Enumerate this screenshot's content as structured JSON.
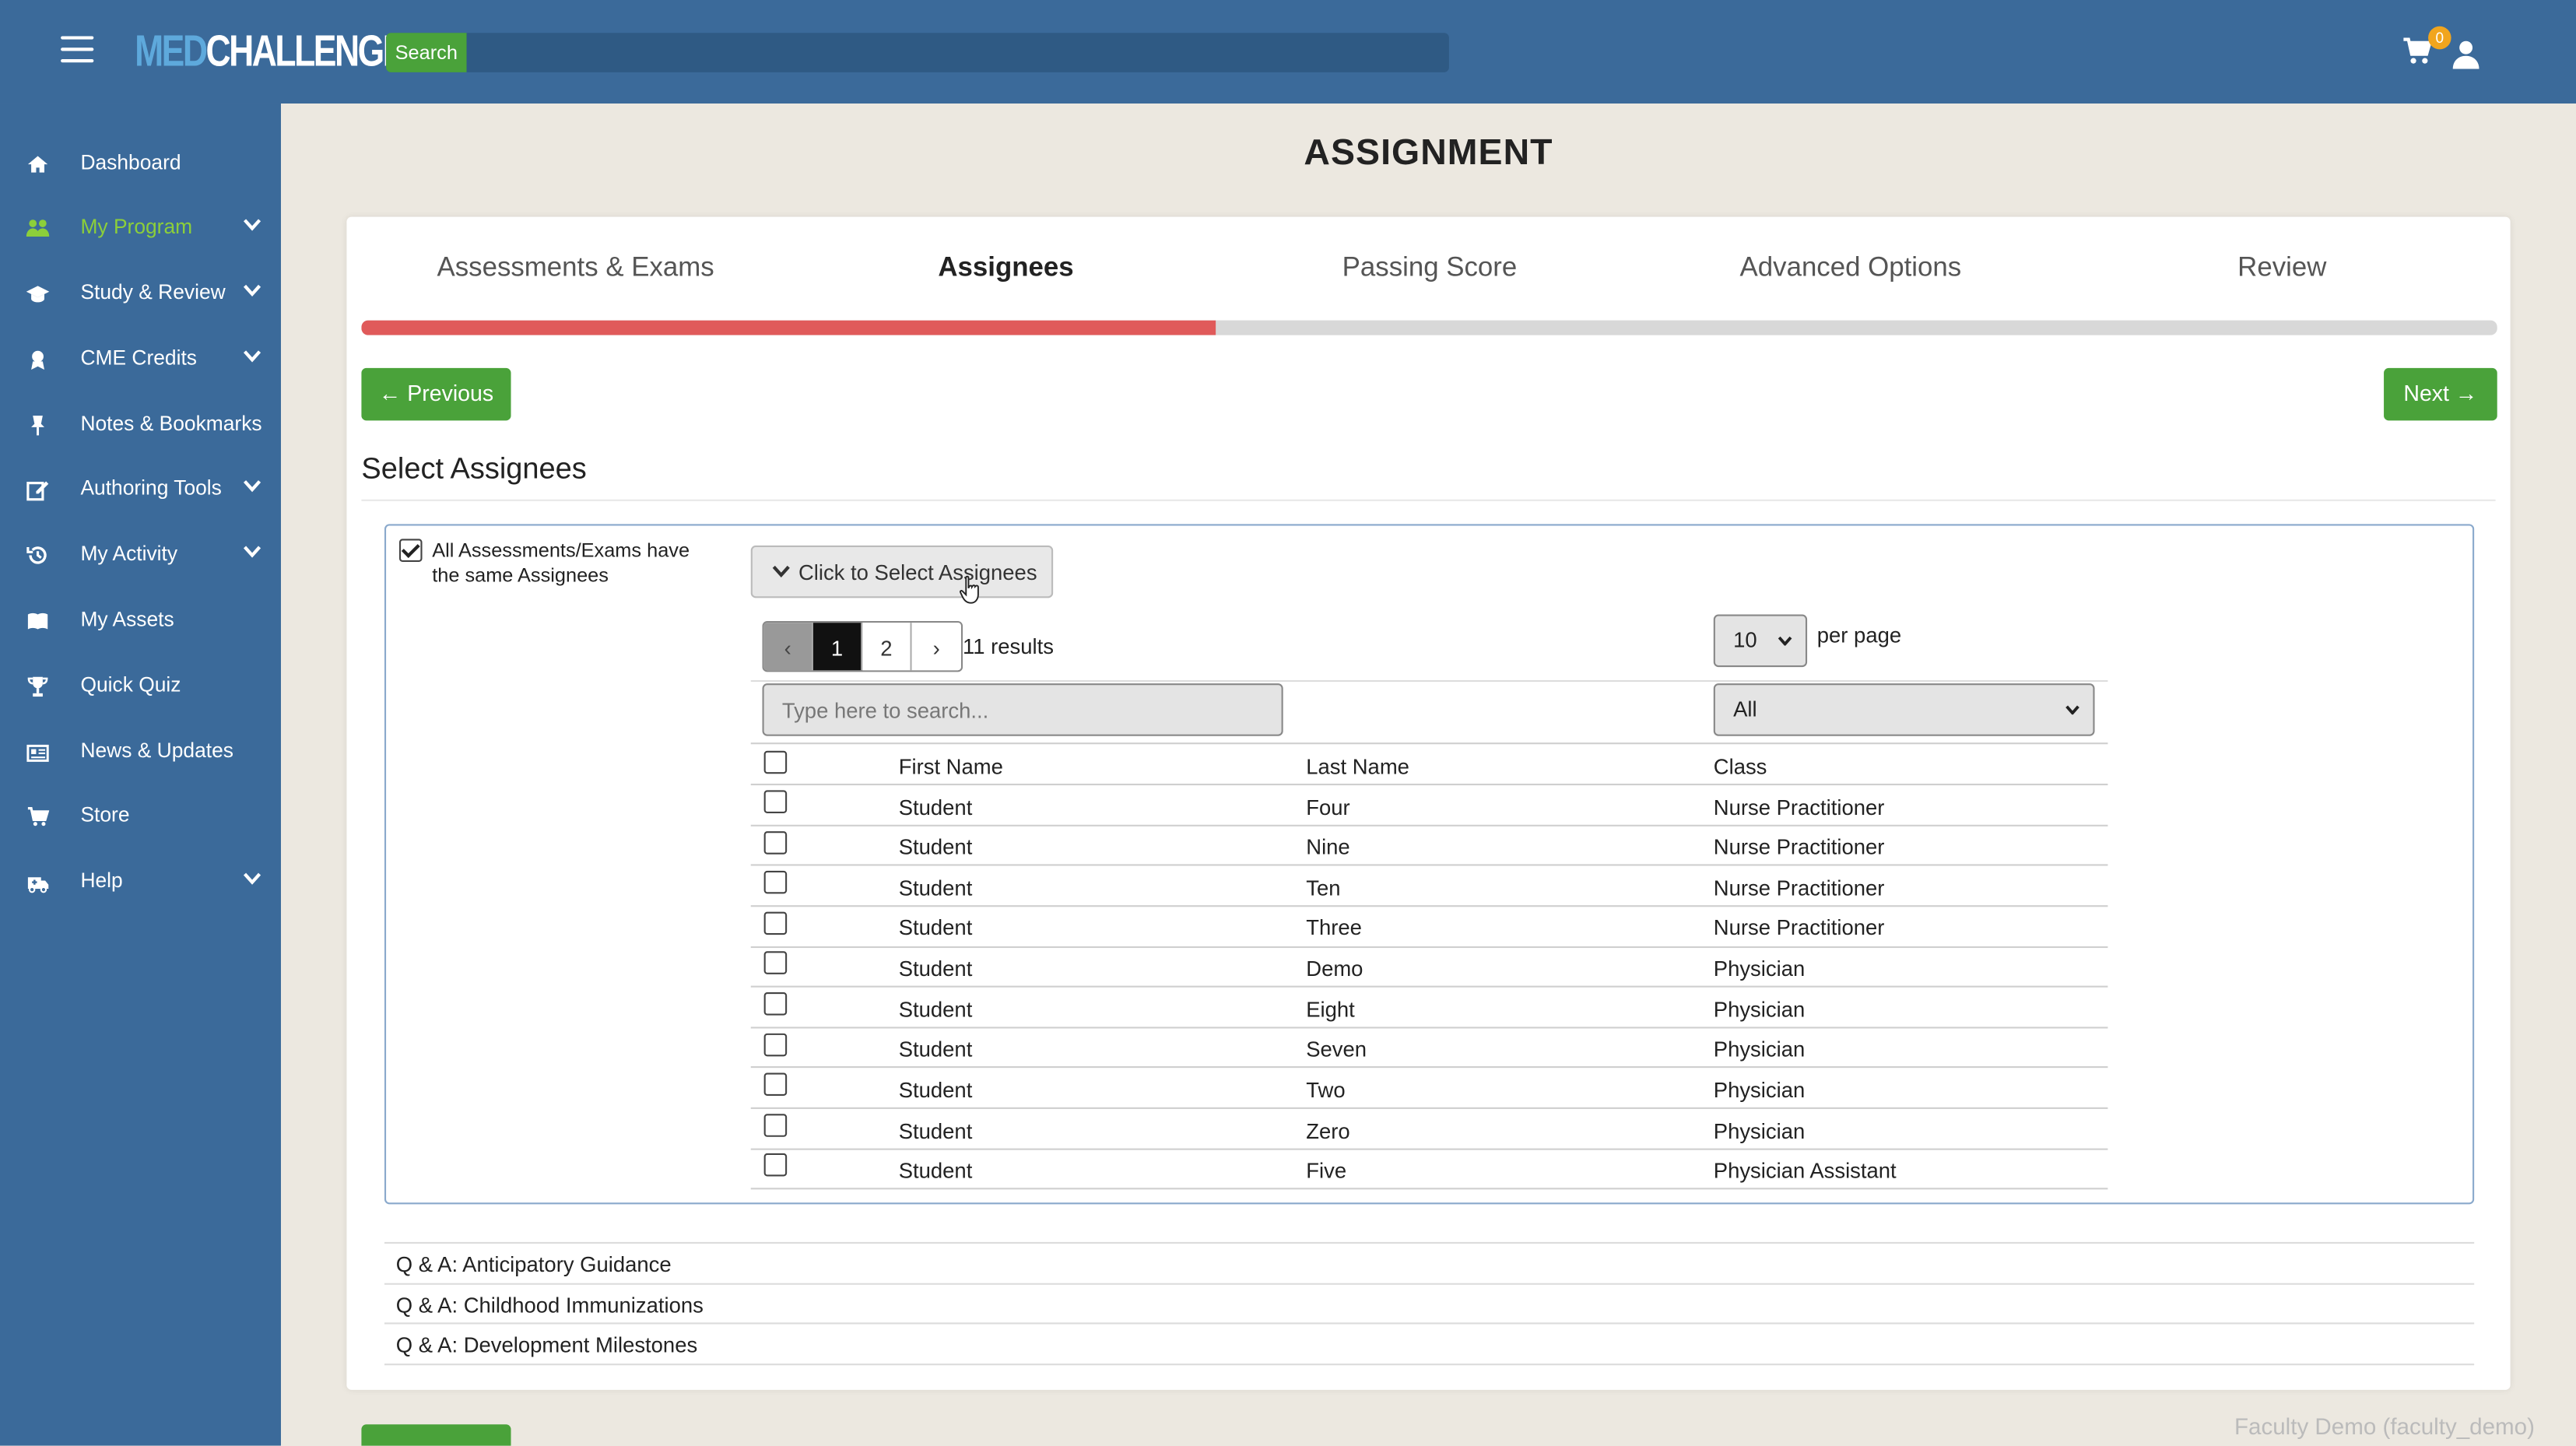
{
  "header": {
    "logo_part1": "MED",
    "logo_part2": "CHALLENGER",
    "search_label": "Search",
    "search_placeholder": "",
    "cart_count": "0"
  },
  "sidebar": {
    "items": [
      {
        "label": "Dashboard",
        "icon": "home-icon"
      },
      {
        "label": "My Program",
        "icon": "users-icon"
      },
      {
        "label": "Study & Review",
        "icon": "graduation-cap-icon"
      },
      {
        "label": "CME Credits",
        "icon": "award-icon"
      },
      {
        "label": "Notes & Bookmarks",
        "icon": "pin-icon"
      },
      {
        "label": "Authoring Tools",
        "icon": "edit-icon"
      },
      {
        "label": "My Activity",
        "icon": "history-icon"
      },
      {
        "label": "My Assets",
        "icon": "book-icon"
      },
      {
        "label": "Quick Quiz",
        "icon": "trophy-icon"
      },
      {
        "label": "News & Updates",
        "icon": "newspaper-icon"
      },
      {
        "label": "Store",
        "icon": "cart-icon"
      },
      {
        "label": "Help",
        "icon": "ambulance-icon"
      }
    ]
  },
  "page": {
    "title": "ASSIGNMENT",
    "steps": [
      "Assessments & Exams",
      "Assignees",
      "Passing Score",
      "Advanced Options",
      "Review"
    ],
    "active_step": "Assignees",
    "progress_percent": 40,
    "prev_label": "← Previous",
    "next_label": "Next →",
    "section_title": "Select Assignees"
  },
  "assignees": {
    "same_label": "All Assessments/Exams have the same Assignees",
    "same_checked": true,
    "toggle_label": "Click to Select Assignees",
    "pager": {
      "prev": "‹",
      "pages": [
        "1",
        "2"
      ],
      "next": "›",
      "current": "1"
    },
    "results": "11 results",
    "per_page_value": "10",
    "per_page_label": "per page",
    "search_placeholder": "Type here to search...",
    "class_filter_value": "All",
    "columns": [
      "First Name",
      "Last Name",
      "Class"
    ],
    "rows": [
      {
        "first": "Student",
        "last": "Four",
        "class": "Nurse Practitioner"
      },
      {
        "first": "Student",
        "last": "Nine",
        "class": "Nurse Practitioner"
      },
      {
        "first": "Student",
        "last": "Ten",
        "class": "Nurse Practitioner"
      },
      {
        "first": "Student",
        "last": "Three",
        "class": "Nurse Practitioner"
      },
      {
        "first": "Student",
        "last": "Demo",
        "class": "Physician"
      },
      {
        "first": "Student",
        "last": "Eight",
        "class": "Physician"
      },
      {
        "first": "Student",
        "last": "Seven",
        "class": "Physician"
      },
      {
        "first": "Student",
        "last": "Two",
        "class": "Physician"
      },
      {
        "first": "Student",
        "last": "Zero",
        "class": "Physician"
      },
      {
        "first": "Student",
        "last": "Five",
        "class": "Physician Assistant"
      }
    ]
  },
  "qa_items": [
    "Q & A: Anticipatory Guidance",
    "Q & A: Childhood Immunizations",
    "Q & A: Development Milestones"
  ],
  "footer": {
    "user_tag": "Faculty Demo (faculty_demo)"
  },
  "colors": {
    "brand_blue": "#3b6a9a",
    "accent_green": "#4aa23a",
    "progress_red": "#e05a5a",
    "active_nav": "#8ccf3a"
  }
}
